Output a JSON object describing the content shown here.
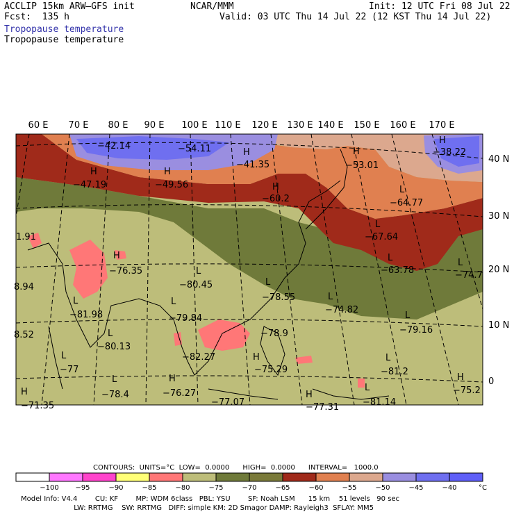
{
  "header": {
    "model_line": "ACCLIP 15km ARW–GFS init",
    "org": "NCAR/MMM",
    "init": "Init: 12 UTC Fri 08 Jul 22",
    "fcst": "Fcst:  135 h",
    "valid": "Valid: 03 UTC Thu 14 Jul 22 (12 KST Thu 14 Jul 22)",
    "field_1": "Tropopause temperature",
    "field_2": "Tropopause temperature"
  },
  "map": {
    "lon_labels": [
      "60 E",
      "70 E",
      "80 E",
      "90 E",
      "100 E",
      "110 E",
      "120 E",
      "130 E",
      "140 E",
      "150 E",
      "160 E",
      "170 E"
    ],
    "lat_labels": [
      "40 N",
      "30 N",
      "20 N",
      "10 N",
      "0"
    ],
    "annotations": [
      {
        "mark": "",
        "value": "−42.14"
      },
      {
        "mark": "",
        "value": "−54.11"
      },
      {
        "mark": "H",
        "value": "−41.35"
      },
      {
        "mark": "H",
        "value": "−53.01"
      },
      {
        "mark": "H",
        "value": "−38.22"
      },
      {
        "mark": "H",
        "value": "−47.19"
      },
      {
        "mark": "H",
        "value": "−49.56"
      },
      {
        "mark": "H",
        "value": "−60.2"
      },
      {
        "mark": "L",
        "value": "−64.77"
      },
      {
        "mark": "L",
        "value": "−67.64"
      },
      {
        "mark": "L",
        "value": "−63.78"
      },
      {
        "mark": "L",
        "value": "−74.7"
      },
      {
        "mark": "",
        "value": "1.91"
      },
      {
        "mark": "H",
        "value": "−76.35"
      },
      {
        "mark": "L",
        "value": "−80.45"
      },
      {
        "mark": "",
        "value": "8.94"
      },
      {
        "mark": "L",
        "value": "−78.55"
      },
      {
        "mark": "L",
        "value": "−74.82"
      },
      {
        "mark": "L",
        "value": "−81.98"
      },
      {
        "mark": "L",
        "value": "−79.84"
      },
      {
        "mark": "L",
        "value": "−79.16"
      },
      {
        "mark": "",
        "value": "−78.9"
      },
      {
        "mark": "",
        "value": "8.52"
      },
      {
        "mark": "L",
        "value": "−80.13"
      },
      {
        "mark": "",
        "value": "−82.27"
      },
      {
        "mark": "L",
        "value": "−77"
      },
      {
        "mark": "H",
        "value": "−75.29"
      },
      {
        "mark": "L",
        "value": "−81.2"
      },
      {
        "mark": "L",
        "value": "−78.4"
      },
      {
        "mark": "H",
        "value": "−76.27"
      },
      {
        "mark": "H",
        "value": "−75.2"
      },
      {
        "mark": "H",
        "value": "−71.35"
      },
      {
        "mark": "",
        "value": "−77.07"
      },
      {
        "mark": "H",
        "value": "−77.31"
      },
      {
        "mark": "L",
        "value": "−81.14"
      }
    ]
  },
  "contours_line": "CONTOURS:  UNITS=°C  LOW=  0.0000      HIGH=  0.0000      INTERVAL=   1000.0",
  "legend": {
    "colors": [
      "#ffffff",
      "#ff77ff",
      "#ff44cc",
      "#ffff77",
      "#ff7777",
      "#bdbd7a",
      "#6f7a3a",
      "#7a7a3a",
      "#a02a1a",
      "#e08050",
      "#dca88e",
      "#9a8ee0",
      "#6f6ff0",
      "#5f5ff8"
    ],
    "labels": [
      "−100",
      "−95",
      "−90",
      "−85",
      "−80",
      "−75",
      "−70",
      "−65",
      "−60",
      "−55",
      "−50",
      "−45",
      "−40",
      "°C"
    ]
  },
  "footer": {
    "line1": "Model Info: V4.4        CU: KF        MP: WDM 6class   PBL: YSU        SF: Noah LSM      15 km    51 levels   90 sec",
    "line2": "                        LW: RRTMG    SW: RRTMG   DIFF: simple KM: 2D Smagor DAMP: Rayleigh3  SFLAY: MM5"
  }
}
